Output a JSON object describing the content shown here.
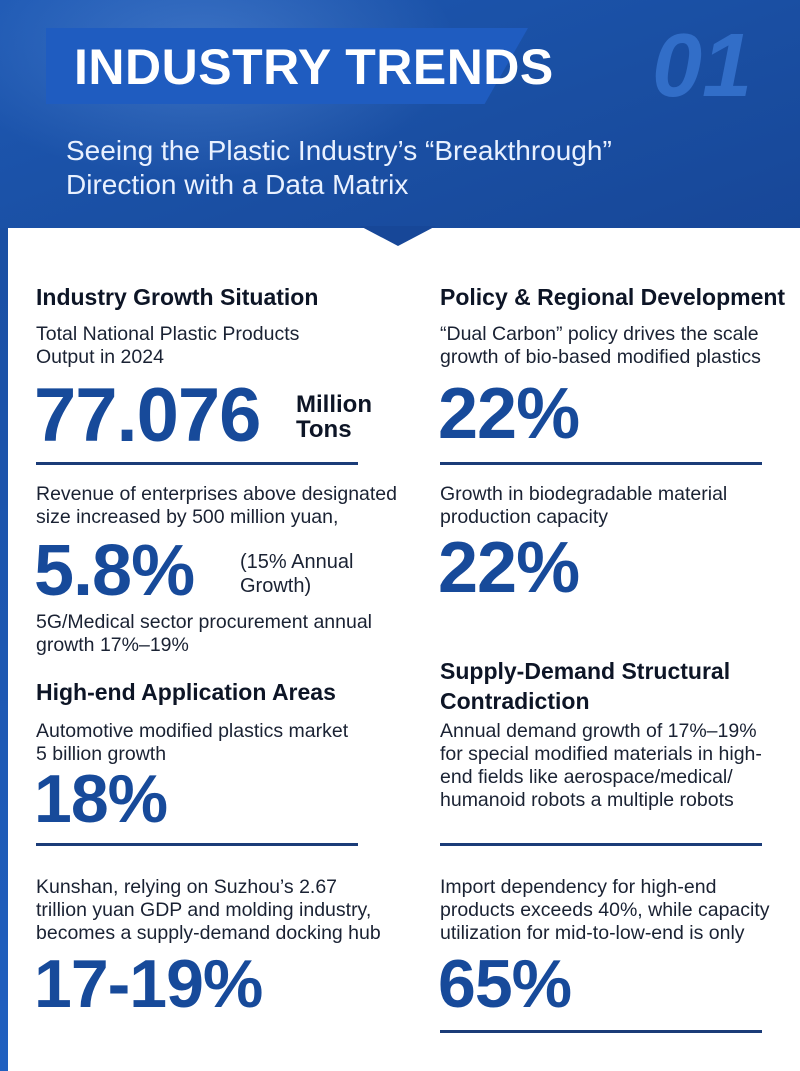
{
  "header": {
    "title": "INDUSTRY TRENDS",
    "number": "01",
    "subtitle": "Seeing the Plastic Industry’s “Breakthrough”\nDirection with a Data Matrix"
  },
  "left": {
    "growth": {
      "title": "Industry Growth Situation",
      "desc": "Total National Plastic Products\nOutput in 2024",
      "value": "77.076",
      "unit": "Million\nTons"
    },
    "revenue": {
      "desc": "Revenue of enterprises above designated\nsize increased by 500 million yuan,",
      "value": "5.8%",
      "note": "(15% Annual\nGrowth)",
      "extra": "5G/Medical sector procurement annual\ngrowth 17%–19%"
    },
    "highend": {
      "title": "High-end Application Areas",
      "desc": "Automotive modified plastics market\n5 billion growth",
      "value": "18%"
    },
    "kunshan": {
      "desc": "Kunshan, relying on Suzhou’s 2.67\ntrillion yuan GDP and molding industry,\nbecomes a supply-demand docking hub",
      "value": "17-19%"
    }
  },
  "right": {
    "policy": {
      "title": "Policy & Regional Development",
      "desc": "“Dual Carbon” policy drives the scale\ngrowth of bio-based modified plastics",
      "value": "22%"
    },
    "biodegradable": {
      "desc": "Growth in biodegradable material\nproduction capacity",
      "value": "22%"
    },
    "supply": {
      "title": "Supply-Demand Structural\nContradiction",
      "desc": "Annual demand growth of 17%–19%\nfor special modified materials in high-\nend fields like aerospace/medical/\nhumanoid robots a multiple robots"
    },
    "import": {
      "desc": "Import dependency for high-end\nproducts exceeds 40%, while capacity\nutilization for mid-to-low-end is only",
      "value": "65%"
    }
  },
  "colors": {
    "header_blue": "#1a4fa3",
    "accent_blue": "#174a9a",
    "rule_navy": "#1b3c78"
  }
}
